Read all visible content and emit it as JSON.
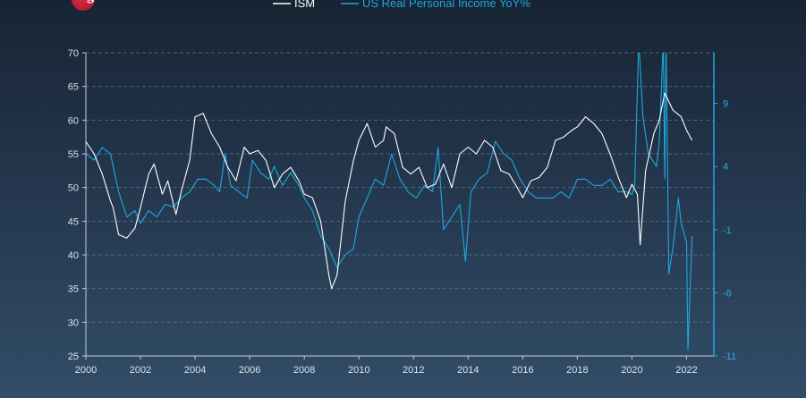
{
  "logo": {
    "text": "gmi"
  },
  "colors": {
    "background_top": "#182433",
    "background_bottom": "#324d68",
    "ism": "#ffffff",
    "income": "#1ea8e0",
    "grid": "#5c7590",
    "tick_text": "#d8e2ee",
    "right_tick_text": "#2aa8e0"
  },
  "chart_data": {
    "type": "line",
    "legend": {
      "placement": "top-center"
    },
    "x_ticks": [
      "2000",
      "2002",
      "2004",
      "2006",
      "2008",
      "2010",
      "2012",
      "2014",
      "2016",
      "2018",
      "2020",
      "2022"
    ],
    "xlim": [
      2000,
      2023
    ],
    "y_left": {
      "ticks": [
        "70",
        "65",
        "60",
        "55",
        "50",
        "45",
        "40",
        "35",
        "30",
        "25"
      ],
      "ylim": [
        25,
        70
      ]
    },
    "y_right": {
      "ticks": [
        "9",
        "4",
        "-1",
        "-6",
        "-11"
      ],
      "ylim": [
        -11,
        13
      ]
    },
    "grid": true,
    "series": [
      {
        "name": "ISM",
        "axis": "left",
        "points": [
          [
            2000.0,
            56.8
          ],
          [
            2000.3,
            55.0
          ],
          [
            2000.6,
            52.0
          ],
          [
            2000.9,
            48.0
          ],
          [
            2001.0,
            47.0
          ],
          [
            2001.2,
            43.0
          ],
          [
            2001.5,
            42.5
          ],
          [
            2001.8,
            44.0
          ],
          [
            2002.0,
            47.0
          ],
          [
            2002.3,
            52.0
          ],
          [
            2002.5,
            53.5
          ],
          [
            2002.8,
            49.0
          ],
          [
            2003.0,
            51.0
          ],
          [
            2003.3,
            46.0
          ],
          [
            2003.5,
            49.5
          ],
          [
            2003.8,
            54.0
          ],
          [
            2004.0,
            60.5
          ],
          [
            2004.3,
            61.0
          ],
          [
            2004.6,
            58.0
          ],
          [
            2004.9,
            56.0
          ],
          [
            2005.2,
            53.0
          ],
          [
            2005.5,
            51.0
          ],
          [
            2005.8,
            56.0
          ],
          [
            2006.0,
            55.0
          ],
          [
            2006.3,
            55.5
          ],
          [
            2006.6,
            54.0
          ],
          [
            2006.9,
            50.0
          ],
          [
            2007.2,
            52.0
          ],
          [
            2007.5,
            53.0
          ],
          [
            2007.8,
            51.0
          ],
          [
            2008.0,
            49.0
          ],
          [
            2008.3,
            48.5
          ],
          [
            2008.6,
            45.0
          ],
          [
            2008.9,
            37.0
          ],
          [
            2009.0,
            35.0
          ],
          [
            2009.2,
            37.0
          ],
          [
            2009.5,
            48.0
          ],
          [
            2009.8,
            54.0
          ],
          [
            2010.0,
            57.0
          ],
          [
            2010.3,
            59.5
          ],
          [
            2010.6,
            56.0
          ],
          [
            2010.9,
            57.0
          ],
          [
            2011.0,
            59.0
          ],
          [
            2011.3,
            58.0
          ],
          [
            2011.6,
            53.0
          ],
          [
            2011.9,
            52.0
          ],
          [
            2012.2,
            53.0
          ],
          [
            2012.5,
            50.0
          ],
          [
            2012.8,
            50.5
          ],
          [
            2013.1,
            53.5
          ],
          [
            2013.4,
            50.0
          ],
          [
            2013.7,
            55.0
          ],
          [
            2014.0,
            56.0
          ],
          [
            2014.3,
            55.0
          ],
          [
            2014.6,
            57.0
          ],
          [
            2014.9,
            56.0
          ],
          [
            2015.2,
            52.5
          ],
          [
            2015.5,
            52.0
          ],
          [
            2015.8,
            50.0
          ],
          [
            2016.0,
            48.5
          ],
          [
            2016.3,
            51.0
          ],
          [
            2016.6,
            51.5
          ],
          [
            2016.9,
            53.0
          ],
          [
            2017.2,
            57.0
          ],
          [
            2017.5,
            57.5
          ],
          [
            2017.8,
            58.5
          ],
          [
            2018.0,
            59.0
          ],
          [
            2018.3,
            60.5
          ],
          [
            2018.6,
            59.5
          ],
          [
            2018.9,
            58.0
          ],
          [
            2019.2,
            55.0
          ],
          [
            2019.5,
            51.5
          ],
          [
            2019.8,
            48.5
          ],
          [
            2020.0,
            50.5
          ],
          [
            2020.2,
            49.0
          ],
          [
            2020.3,
            41.5
          ],
          [
            2020.5,
            52.5
          ],
          [
            2020.8,
            58.0
          ],
          [
            2021.0,
            60.0
          ],
          [
            2021.2,
            64.0
          ],
          [
            2021.5,
            61.5
          ],
          [
            2021.8,
            60.5
          ],
          [
            2022.0,
            58.5
          ],
          [
            2022.2,
            57.0
          ]
        ]
      },
      {
        "name": "US Real Personal Income YoY%",
        "axis": "right",
        "points": [
          [
            2000.0,
            5.0
          ],
          [
            2000.3,
            4.5
          ],
          [
            2000.6,
            5.5
          ],
          [
            2000.9,
            5.0
          ],
          [
            2001.2,
            2.0
          ],
          [
            2001.5,
            0.0
          ],
          [
            2001.8,
            0.5
          ],
          [
            2002.0,
            -0.5
          ],
          [
            2002.3,
            0.5
          ],
          [
            2002.6,
            0.0
          ],
          [
            2002.9,
            1.0
          ],
          [
            2003.2,
            0.8
          ],
          [
            2003.5,
            1.5
          ],
          [
            2003.8,
            2.0
          ],
          [
            2004.1,
            3.0
          ],
          [
            2004.4,
            3.0
          ],
          [
            2004.7,
            2.5
          ],
          [
            2004.9,
            2.0
          ],
          [
            2005.1,
            5.0
          ],
          [
            2005.3,
            2.5
          ],
          [
            2005.6,
            2.0
          ],
          [
            2005.9,
            1.5
          ],
          [
            2006.1,
            4.5
          ],
          [
            2006.4,
            3.5
          ],
          [
            2006.7,
            3.0
          ],
          [
            2006.9,
            4.0
          ],
          [
            2007.2,
            2.5
          ],
          [
            2007.5,
            3.5
          ],
          [
            2007.8,
            2.5
          ],
          [
            2008.0,
            1.5
          ],
          [
            2008.3,
            0.5
          ],
          [
            2008.6,
            -1.5
          ],
          [
            2008.9,
            -2.5
          ],
          [
            2009.2,
            -4.0
          ],
          [
            2009.5,
            -3.0
          ],
          [
            2009.8,
            -2.5
          ],
          [
            2010.0,
            0.0
          ],
          [
            2010.3,
            1.5
          ],
          [
            2010.6,
            3.0
          ],
          [
            2010.9,
            2.5
          ],
          [
            2011.2,
            5.0
          ],
          [
            2011.5,
            3.0
          ],
          [
            2011.8,
            2.0
          ],
          [
            2012.1,
            1.5
          ],
          [
            2012.4,
            2.5
          ],
          [
            2012.7,
            2.0
          ],
          [
            2012.9,
            5.5
          ],
          [
            2013.1,
            -1.0
          ],
          [
            2013.4,
            0.0
          ],
          [
            2013.7,
            1.0
          ],
          [
            2013.9,
            -3.5
          ],
          [
            2014.1,
            2.0
          ],
          [
            2014.4,
            3.0
          ],
          [
            2014.7,
            3.5
          ],
          [
            2015.0,
            6.0
          ],
          [
            2015.3,
            5.0
          ],
          [
            2015.6,
            4.5
          ],
          [
            2015.9,
            3.0
          ],
          [
            2016.2,
            2.0
          ],
          [
            2016.5,
            1.5
          ],
          [
            2016.8,
            1.5
          ],
          [
            2017.1,
            1.5
          ],
          [
            2017.4,
            2.0
          ],
          [
            2017.7,
            1.5
          ],
          [
            2018.0,
            3.0
          ],
          [
            2018.3,
            3.0
          ],
          [
            2018.6,
            2.5
          ],
          [
            2018.9,
            2.5
          ],
          [
            2019.2,
            3.0
          ],
          [
            2019.5,
            2.0
          ],
          [
            2019.8,
            2.0
          ],
          [
            2020.0,
            1.8
          ],
          [
            2020.1,
            2.5
          ],
          [
            2020.25,
            14.0
          ],
          [
            2020.4,
            8.0
          ],
          [
            2020.6,
            5.0
          ],
          [
            2020.9,
            4.0
          ],
          [
            2021.0,
            6.0
          ],
          [
            2021.15,
            14.0
          ],
          [
            2021.2,
            3.0
          ],
          [
            2021.25,
            14.0
          ],
          [
            2021.35,
            -4.5
          ],
          [
            2021.5,
            -2.5
          ],
          [
            2021.7,
            1.5
          ],
          [
            2021.8,
            -0.5
          ],
          [
            2022.0,
            -2.0
          ],
          [
            2022.05,
            -10.5
          ],
          [
            2022.2,
            -1.5
          ]
        ]
      }
    ]
  }
}
